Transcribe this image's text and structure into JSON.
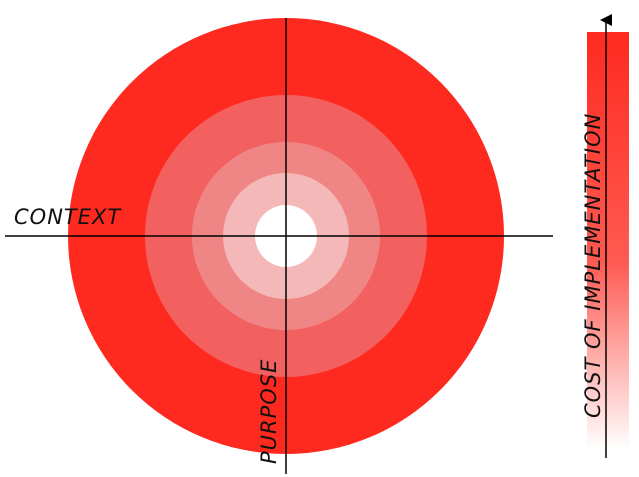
{
  "labels": {
    "horizontal_axis": "CONTEXT",
    "vertical_axis": "PURPOSE",
    "scale": "COST OF IMPLEMENTATION"
  },
  "colors": {
    "ring_outer": "#ff2a1f",
    "ring_2": "#f26060",
    "ring_3": "#f08585",
    "ring_4": "#f5b8b8",
    "center": "#ffffff",
    "axis": "#000000",
    "scale_top": "#ff2a1f",
    "scale_bottom": "#ffffff",
    "text": "#111111"
  }
}
